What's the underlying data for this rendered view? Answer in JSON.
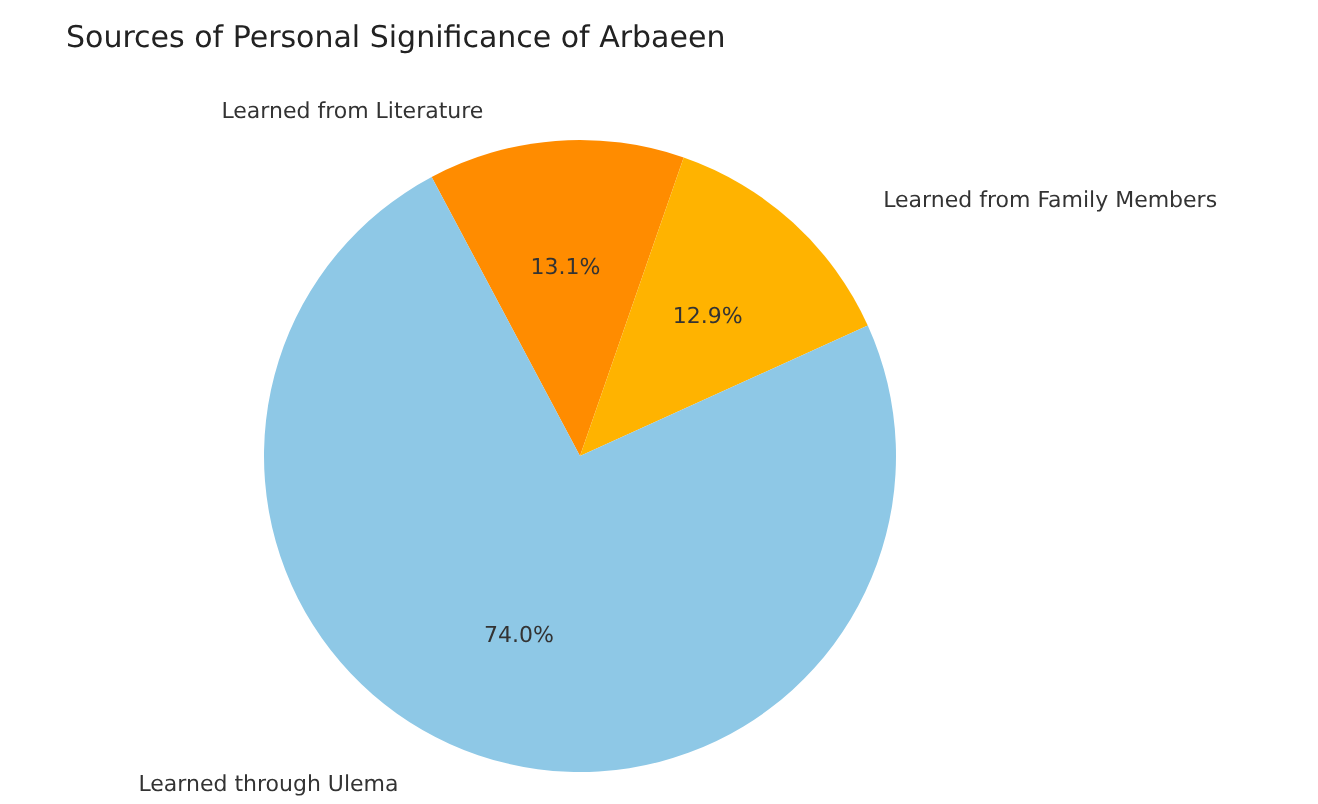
{
  "chart_data": {
    "type": "pie",
    "title": "Sources of Personal Significance of Arbaeen",
    "categories": [
      "Learned from Literature",
      "Learned from Family Members",
      "Learned through Ulema"
    ],
    "values": [
      13.1,
      12.9,
      74.0
    ],
    "value_labels": [
      "13.1%",
      "12.9%",
      "74.0%"
    ],
    "colors": [
      "#ff8c00",
      "#ffb300",
      "#8ec8e6"
    ],
    "legend": false
  }
}
